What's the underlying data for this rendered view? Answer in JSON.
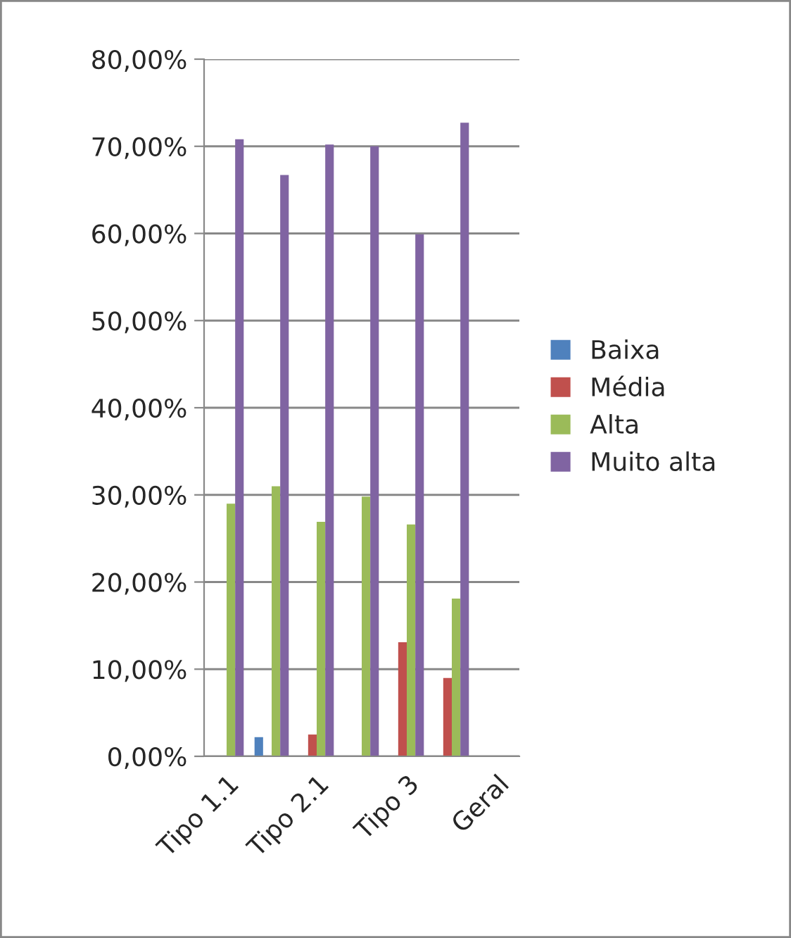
{
  "chart_data": {
    "type": "bar",
    "categories": [
      "Tipo 1.1",
      null,
      "Tipo 2.1",
      null,
      "Tipo 3",
      null,
      "Geral"
    ],
    "series": [
      {
        "name": "Baixa",
        "color": "#4f81bd",
        "values": [
          null,
          2.2,
          null,
          null,
          null,
          null,
          null
        ]
      },
      {
        "name": "Média",
        "color": "#c0504d",
        "values": [
          null,
          null,
          2.5,
          null,
          13.1,
          9.0,
          null
        ]
      },
      {
        "name": "Alta",
        "color": "#9bbb59",
        "values": [
          29.0,
          31.0,
          26.9,
          29.8,
          26.6,
          18.1,
          null
        ]
      },
      {
        "name": "Muito alta",
        "color": "#8064a2",
        "values": [
          70.8,
          66.7,
          70.2,
          70.0,
          59.9,
          72.7,
          null
        ]
      }
    ],
    "ylim": [
      0,
      80
    ],
    "yticks": [
      {
        "value": 0,
        "label": "0,00%"
      },
      {
        "value": 10,
        "label": "10,00%"
      },
      {
        "value": 20,
        "label": "20,00%"
      },
      {
        "value": 30,
        "label": "30,00%"
      },
      {
        "value": 40,
        "label": "40,00%"
      },
      {
        "value": 50,
        "label": "50,00%"
      },
      {
        "value": 60,
        "label": "60,00%"
      },
      {
        "value": 70,
        "label": "70,00%"
      },
      {
        "value": 80,
        "label": "80,00%"
      }
    ],
    "grid": "y",
    "legend": "right"
  }
}
